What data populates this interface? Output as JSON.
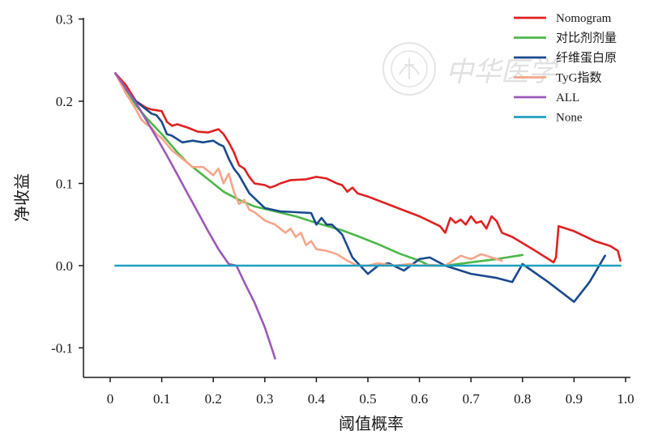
{
  "chart_data": {
    "type": "line",
    "title": "",
    "xlabel": "阈值概率",
    "ylabel": "净收益",
    "xlim": [
      0,
      1.0
    ],
    "ylim": [
      -0.13,
      0.3
    ],
    "x_ticks": [
      0,
      0.1,
      0.2,
      0.3,
      0.4,
      0.5,
      0.6,
      0.7,
      0.8,
      0.9,
      1.0
    ],
    "x_tick_labels": [
      "0",
      "0.1",
      "0.2",
      "0.3",
      "0.4",
      "0.5",
      "0.6",
      "0.7",
      "0.8",
      "0.9",
      "1.0"
    ],
    "y_ticks": [
      -0.1,
      0.0,
      0.1,
      0.2,
      0.3
    ],
    "y_tick_labels": [
      "-0.1",
      "0.0",
      "0.1",
      "0.2",
      "0.3"
    ],
    "grid": false,
    "legend_position": "top-right",
    "watermark": "中华医学",
    "series": [
      {
        "name": "Nomogram",
        "color": "#e02020",
        "x": [
          0.01,
          0.03,
          0.05,
          0.07,
          0.08,
          0.1,
          0.11,
          0.12,
          0.13,
          0.15,
          0.17,
          0.19,
          0.21,
          0.22,
          0.23,
          0.24,
          0.25,
          0.26,
          0.27,
          0.28,
          0.3,
          0.31,
          0.32,
          0.33,
          0.35,
          0.38,
          0.4,
          0.42,
          0.44,
          0.45,
          0.46,
          0.47,
          0.48,
          0.5,
          0.55,
          0.6,
          0.64,
          0.65,
          0.66,
          0.67,
          0.68,
          0.69,
          0.7,
          0.71,
          0.72,
          0.73,
          0.74,
          0.75,
          0.76,
          0.78,
          0.82,
          0.86,
          0.865,
          0.87,
          0.9,
          0.94,
          0.97,
          0.985,
          0.99
        ],
        "y": [
          0.234,
          0.22,
          0.2,
          0.192,
          0.19,
          0.188,
          0.175,
          0.17,
          0.172,
          0.168,
          0.163,
          0.162,
          0.166,
          0.16,
          0.15,
          0.138,
          0.122,
          0.118,
          0.108,
          0.1,
          0.098,
          0.095,
          0.097,
          0.1,
          0.104,
          0.105,
          0.108,
          0.106,
          0.1,
          0.098,
          0.09,
          0.095,
          0.088,
          0.084,
          0.072,
          0.06,
          0.048,
          0.04,
          0.058,
          0.052,
          0.056,
          0.05,
          0.06,
          0.052,
          0.054,
          0.045,
          0.06,
          0.054,
          0.04,
          0.035,
          0.02,
          0.004,
          0.01,
          0.048,
          0.042,
          0.03,
          0.024,
          0.018,
          0.006
        ]
      },
      {
        "name": "对比剂剂量",
        "color": "#4cb848",
        "x": [
          0.01,
          0.03,
          0.05,
          0.07,
          0.1,
          0.13,
          0.15,
          0.18,
          0.2,
          0.22,
          0.25,
          0.28,
          0.32,
          0.36,
          0.4,
          0.45,
          0.48,
          0.52,
          0.56,
          0.6,
          0.62,
          0.65,
          0.7,
          0.75,
          0.8
        ],
        "y": [
          0.234,
          0.215,
          0.195,
          0.18,
          0.16,
          0.138,
          0.125,
          0.11,
          0.1,
          0.09,
          0.08,
          0.072,
          0.066,
          0.06,
          0.052,
          0.043,
          0.036,
          0.026,
          0.015,
          0.006,
          0.0,
          0.0,
          0.004,
          0.008,
          0.013
        ]
      },
      {
        "name": "纤维蛋白原",
        "color": "#1a4a8c",
        "x": [
          0.01,
          0.03,
          0.05,
          0.07,
          0.08,
          0.09,
          0.1,
          0.11,
          0.12,
          0.14,
          0.16,
          0.18,
          0.2,
          0.21,
          0.22,
          0.23,
          0.24,
          0.25,
          0.27,
          0.3,
          0.33,
          0.36,
          0.39,
          0.4,
          0.41,
          0.42,
          0.43,
          0.45,
          0.47,
          0.5,
          0.52,
          0.54,
          0.57,
          0.6,
          0.62,
          0.65,
          0.7,
          0.75,
          0.78,
          0.8,
          0.85,
          0.9,
          0.93,
          0.96
        ],
        "y": [
          0.234,
          0.215,
          0.2,
          0.19,
          0.185,
          0.183,
          0.175,
          0.16,
          0.158,
          0.15,
          0.152,
          0.15,
          0.152,
          0.148,
          0.145,
          0.13,
          0.118,
          0.11,
          0.088,
          0.07,
          0.066,
          0.065,
          0.064,
          0.05,
          0.058,
          0.05,
          0.05,
          0.038,
          0.01,
          -0.01,
          0.0,
          0.003,
          -0.006,
          0.008,
          0.01,
          0.0,
          -0.01,
          -0.015,
          -0.02,
          0.002,
          -0.02,
          -0.044,
          -0.02,
          0.012
        ]
      },
      {
        "name": "TyG指数",
        "color": "#f5a58a",
        "x": [
          0.01,
          0.03,
          0.05,
          0.06,
          0.07,
          0.08,
          0.09,
          0.1,
          0.12,
          0.14,
          0.16,
          0.18,
          0.2,
          0.21,
          0.22,
          0.23,
          0.24,
          0.25,
          0.26,
          0.27,
          0.28,
          0.29,
          0.3,
          0.32,
          0.34,
          0.35,
          0.36,
          0.37,
          0.38,
          0.39,
          0.4,
          0.42,
          0.44,
          0.46,
          0.48,
          0.5,
          0.52,
          0.55,
          0.58,
          0.6,
          0.62,
          0.65,
          0.68,
          0.7,
          0.72,
          0.74,
          0.76
        ],
        "y": [
          0.234,
          0.21,
          0.19,
          0.178,
          0.172,
          0.168,
          0.16,
          0.155,
          0.14,
          0.13,
          0.12,
          0.12,
          0.11,
          0.118,
          0.1,
          0.112,
          0.09,
          0.075,
          0.08,
          0.068,
          0.065,
          0.06,
          0.055,
          0.05,
          0.04,
          0.045,
          0.035,
          0.04,
          0.025,
          0.03,
          0.02,
          0.018,
          0.014,
          0.006,
          0.0,
          0.0,
          0.003,
          0.0,
          0.002,
          0.0,
          0.001,
          0.0,
          0.012,
          0.008,
          0.014,
          0.01,
          0.006
        ]
      },
      {
        "name": "ALL",
        "color": "#9b59b6",
        "x": [
          0.01,
          0.03,
          0.05,
          0.07,
          0.09,
          0.11,
          0.13,
          0.15,
          0.17,
          0.19,
          0.21,
          0.23,
          0.245,
          0.26,
          0.28,
          0.3,
          0.32
        ],
        "y": [
          0.234,
          0.216,
          0.198,
          0.177,
          0.156,
          0.134,
          0.111,
          0.088,
          0.065,
          0.042,
          0.02,
          0.002,
          0.0,
          -0.02,
          -0.045,
          -0.075,
          -0.113
        ]
      },
      {
        "name": "None",
        "color": "#1f9fbf",
        "x": [
          0.01,
          0.99
        ],
        "y": [
          0.0,
          0.0
        ]
      }
    ]
  }
}
